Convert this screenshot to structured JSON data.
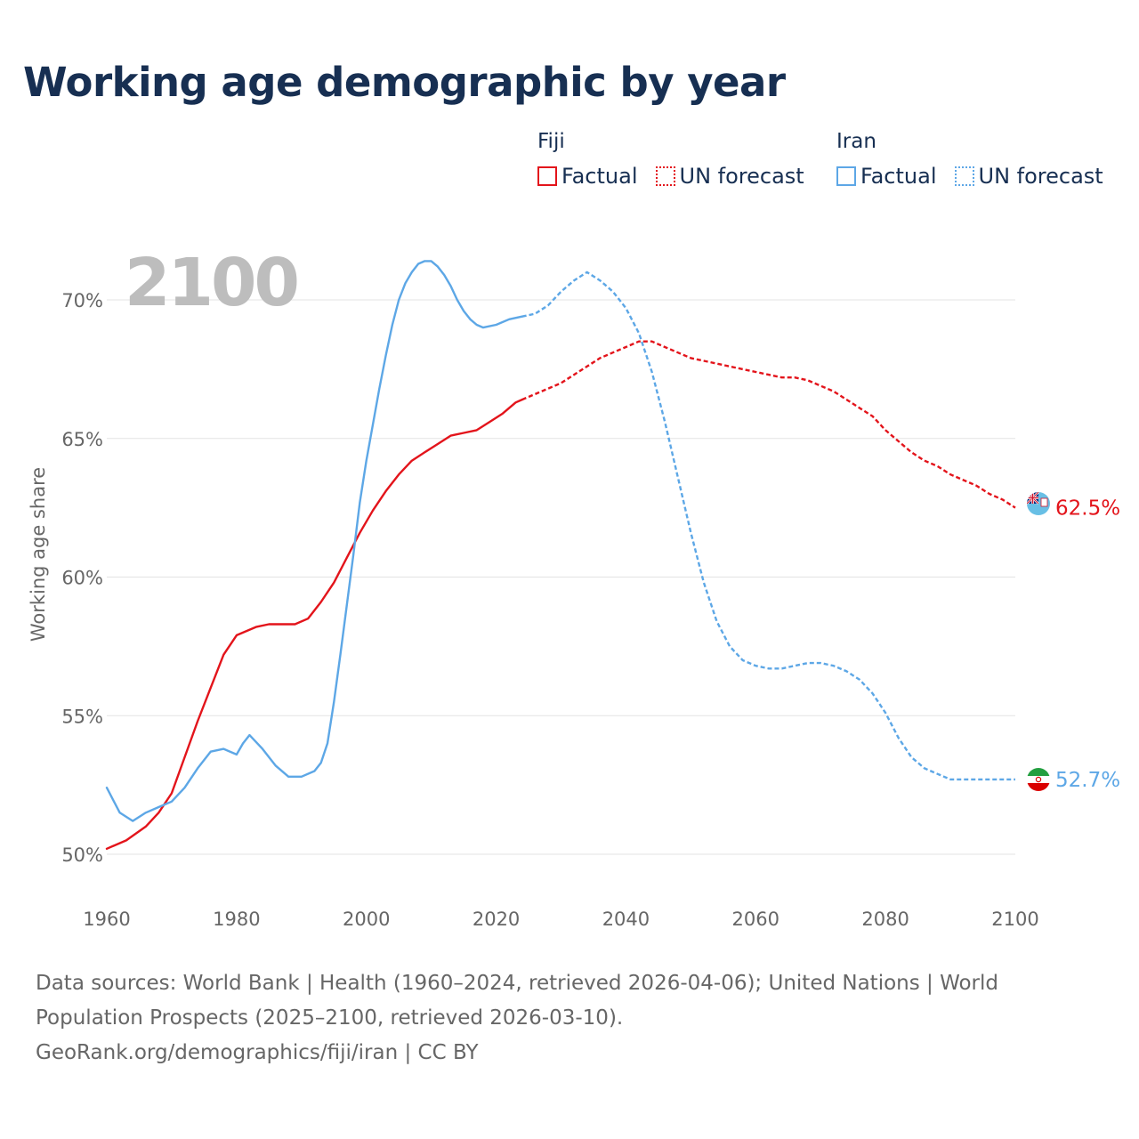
{
  "title": "Working age demographic by year",
  "legend": [
    {
      "country": "Fiji",
      "factual_label": "Factual",
      "forecast_label": "UN forecast",
      "color": "#e3141b"
    },
    {
      "country": "Iran",
      "factual_label": "Factual",
      "forecast_label": "UN forecast",
      "color": "#5da7e6"
    }
  ],
  "year_watermark": "2100",
  "source": {
    "line1": "Data sources: World Bank | Health (1960–2024, retrieved 2026-04-06); United Nations | World Population Prospects (2025–2100, retrieved 2026-03-10).",
    "line2": "GeoRank.org/demographics/fiji/iran | CC BY"
  },
  "chart_data": {
    "type": "line",
    "title": "Working age demographic by year",
    "xlabel": "",
    "ylabel": "Working age share",
    "xlim": [
      1960,
      2100
    ],
    "ylim": [
      49.5,
      71.5
    ],
    "x_ticks": [
      1960,
      1980,
      2000,
      2020,
      2040,
      2060,
      2080,
      2100
    ],
    "y_ticks": [
      50,
      55,
      60,
      65,
      70
    ],
    "y_tick_suffix": "%",
    "grid": true,
    "forecast_start": 2025,
    "series": [
      {
        "name": "Fiji",
        "color": "#e3141b",
        "end_label": "62.5%",
        "points": [
          [
            1960,
            50.2
          ],
          [
            1963,
            50.5
          ],
          [
            1966,
            51.0
          ],
          [
            1968,
            51.5
          ],
          [
            1970,
            52.2
          ],
          [
            1972,
            53.5
          ],
          [
            1974,
            54.8
          ],
          [
            1976,
            56.0
          ],
          [
            1978,
            57.2
          ],
          [
            1980,
            57.9
          ],
          [
            1983,
            58.2
          ],
          [
            1985,
            58.3
          ],
          [
            1987,
            58.3
          ],
          [
            1989,
            58.3
          ],
          [
            1991,
            58.5
          ],
          [
            1993,
            59.1
          ],
          [
            1995,
            59.8
          ],
          [
            1997,
            60.7
          ],
          [
            1999,
            61.6
          ],
          [
            2001,
            62.4
          ],
          [
            2003,
            63.1
          ],
          [
            2005,
            63.7
          ],
          [
            2007,
            64.2
          ],
          [
            2009,
            64.5
          ],
          [
            2011,
            64.8
          ],
          [
            2013,
            65.1
          ],
          [
            2015,
            65.2
          ],
          [
            2017,
            65.3
          ],
          [
            2019,
            65.6
          ],
          [
            2021,
            65.9
          ],
          [
            2023,
            66.3
          ],
          [
            2024,
            66.4
          ],
          [
            2026,
            66.6
          ],
          [
            2028,
            66.8
          ],
          [
            2030,
            67.0
          ],
          [
            2032,
            67.3
          ],
          [
            2034,
            67.6
          ],
          [
            2036,
            67.9
          ],
          [
            2038,
            68.1
          ],
          [
            2040,
            68.3
          ],
          [
            2042,
            68.5
          ],
          [
            2044,
            68.5
          ],
          [
            2046,
            68.3
          ],
          [
            2048,
            68.1
          ],
          [
            2050,
            67.9
          ],
          [
            2052,
            67.8
          ],
          [
            2054,
            67.7
          ],
          [
            2056,
            67.6
          ],
          [
            2058,
            67.5
          ],
          [
            2060,
            67.4
          ],
          [
            2062,
            67.3
          ],
          [
            2064,
            67.2
          ],
          [
            2066,
            67.2
          ],
          [
            2068,
            67.1
          ],
          [
            2070,
            66.9
          ],
          [
            2072,
            66.7
          ],
          [
            2074,
            66.4
          ],
          [
            2076,
            66.1
          ],
          [
            2078,
            65.8
          ],
          [
            2080,
            65.3
          ],
          [
            2082,
            64.9
          ],
          [
            2084,
            64.5
          ],
          [
            2086,
            64.2
          ],
          [
            2088,
            64.0
          ],
          [
            2090,
            63.7
          ],
          [
            2092,
            63.5
          ],
          [
            2094,
            63.3
          ],
          [
            2096,
            63.0
          ],
          [
            2098,
            62.8
          ],
          [
            2100,
            62.5
          ]
        ]
      },
      {
        "name": "Iran",
        "color": "#5da7e6",
        "end_label": "52.7%",
        "points": [
          [
            1960,
            52.4
          ],
          [
            1962,
            51.5
          ],
          [
            1964,
            51.2
          ],
          [
            1966,
            51.5
          ],
          [
            1968,
            51.7
          ],
          [
            1970,
            51.9
          ],
          [
            1972,
            52.4
          ],
          [
            1974,
            53.1
          ],
          [
            1976,
            53.7
          ],
          [
            1978,
            53.8
          ],
          [
            1980,
            53.6
          ],
          [
            1981,
            54.0
          ],
          [
            1982,
            54.3
          ],
          [
            1984,
            53.8
          ],
          [
            1986,
            53.2
          ],
          [
            1988,
            52.8
          ],
          [
            1990,
            52.8
          ],
          [
            1992,
            53.0
          ],
          [
            1993,
            53.3
          ],
          [
            1994,
            54.0
          ],
          [
            1995,
            55.5
          ],
          [
            1996,
            57.2
          ],
          [
            1997,
            59.0
          ],
          [
            1998,
            60.8
          ],
          [
            1999,
            62.7
          ],
          [
            2000,
            64.2
          ],
          [
            2001,
            65.5
          ],
          [
            2002,
            66.8
          ],
          [
            2003,
            68.0
          ],
          [
            2004,
            69.1
          ],
          [
            2005,
            70.0
          ],
          [
            2006,
            70.6
          ],
          [
            2007,
            71.0
          ],
          [
            2008,
            71.3
          ],
          [
            2009,
            71.4
          ],
          [
            2010,
            71.4
          ],
          [
            2011,
            71.2
          ],
          [
            2012,
            70.9
          ],
          [
            2013,
            70.5
          ],
          [
            2014,
            70.0
          ],
          [
            2015,
            69.6
          ],
          [
            2016,
            69.3
          ],
          [
            2017,
            69.1
          ],
          [
            2018,
            69.0
          ],
          [
            2020,
            69.1
          ],
          [
            2022,
            69.3
          ],
          [
            2024,
            69.4
          ],
          [
            2026,
            69.5
          ],
          [
            2028,
            69.8
          ],
          [
            2030,
            70.3
          ],
          [
            2032,
            70.7
          ],
          [
            2034,
            71.0
          ],
          [
            2036,
            70.7
          ],
          [
            2038,
            70.3
          ],
          [
            2040,
            69.7
          ],
          [
            2042,
            68.8
          ],
          [
            2044,
            67.4
          ],
          [
            2046,
            65.6
          ],
          [
            2048,
            63.6
          ],
          [
            2050,
            61.6
          ],
          [
            2052,
            59.8
          ],
          [
            2054,
            58.4
          ],
          [
            2056,
            57.5
          ],
          [
            2058,
            57.0
          ],
          [
            2060,
            56.8
          ],
          [
            2062,
            56.7
          ],
          [
            2064,
            56.7
          ],
          [
            2066,
            56.8
          ],
          [
            2068,
            56.9
          ],
          [
            2070,
            56.9
          ],
          [
            2072,
            56.8
          ],
          [
            2074,
            56.6
          ],
          [
            2076,
            56.3
          ],
          [
            2078,
            55.8
          ],
          [
            2080,
            55.1
          ],
          [
            2082,
            54.2
          ],
          [
            2084,
            53.5
          ],
          [
            2086,
            53.1
          ],
          [
            2088,
            52.9
          ],
          [
            2090,
            52.7
          ],
          [
            2094,
            52.7
          ],
          [
            2096,
            52.7
          ],
          [
            2098,
            52.7
          ],
          [
            2100,
            52.7
          ]
        ]
      }
    ]
  }
}
